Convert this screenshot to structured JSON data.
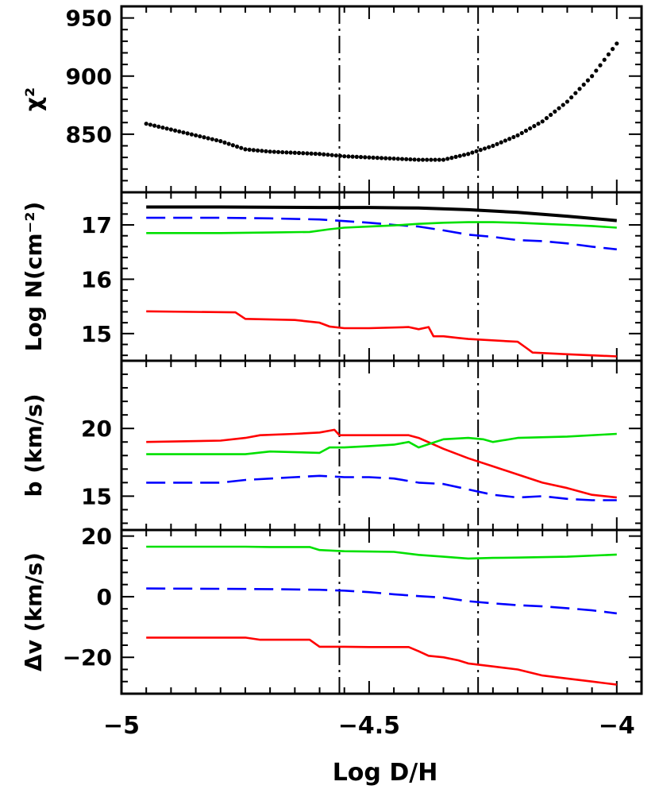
{
  "figure": {
    "xlabel": "Log D/H",
    "x_ticks": [
      -5,
      -4.5,
      -4
    ],
    "x_tick_labels": [
      "−5",
      "−4.5",
      "−4"
    ],
    "xlim": [
      -5,
      -3.95
    ],
    "vlines": [
      -4.56,
      -4.28
    ],
    "colors": {
      "black": "#000000",
      "blue": "#0000ff",
      "green": "#00e000",
      "red": "#ff0000"
    }
  },
  "chart_data": [
    {
      "type": "scatter",
      "ylabel": "χ²",
      "ylim": [
        800,
        960
      ],
      "y_ticks": [
        850,
        900,
        950
      ],
      "y_tick_labels": [
        "850",
        "900",
        "950"
      ],
      "series": [
        {
          "color": "black",
          "style": "dotted",
          "x": [
            -4.95,
            -4.9,
            -4.85,
            -4.8,
            -4.75,
            -4.7,
            -4.65,
            -4.6,
            -4.55,
            -4.5,
            -4.45,
            -4.4,
            -4.35,
            -4.3,
            -4.25,
            -4.2,
            -4.15,
            -4.1,
            -4.05,
            -4.0
          ],
          "y": [
            859,
            854,
            849,
            844,
            837,
            835,
            834,
            833,
            831,
            830,
            829,
            828,
            828,
            833,
            840,
            849,
            861,
            878,
            900,
            928
          ]
        }
      ]
    },
    {
      "type": "line",
      "ylabel": "Log N(cm⁻²)",
      "ylim": [
        14.5,
        17.6
      ],
      "y_ticks": [
        15,
        16,
        17
      ],
      "y_tick_labels": [
        "15",
        "16",
        "17"
      ],
      "series": [
        {
          "color": "black",
          "style": "solid",
          "x": [
            -4.95,
            -4.8,
            -4.6,
            -4.5,
            -4.4,
            -4.3,
            -4.2,
            -4.1,
            -4.0
          ],
          "y": [
            17.33,
            17.33,
            17.32,
            17.32,
            17.31,
            17.28,
            17.23,
            17.16,
            17.08
          ]
        },
        {
          "color": "blue",
          "style": "dashed",
          "x": [
            -4.95,
            -4.8,
            -4.7,
            -4.6,
            -4.55,
            -4.5,
            -4.45,
            -4.4,
            -4.35,
            -4.3,
            -4.25,
            -4.2,
            -4.15,
            -4.1,
            -4.05,
            -4.0
          ],
          "y": [
            17.13,
            17.13,
            17.12,
            17.1,
            17.07,
            17.04,
            17.0,
            16.97,
            16.9,
            16.82,
            16.78,
            16.72,
            16.7,
            16.66,
            16.6,
            16.55
          ]
        },
        {
          "color": "green",
          "style": "solid",
          "x": [
            -4.95,
            -4.8,
            -4.7,
            -4.62,
            -4.58,
            -4.55,
            -4.5,
            -4.45,
            -4.4,
            -4.35,
            -4.3,
            -4.25,
            -4.2,
            -4.15,
            -4.1,
            -4.05,
            -4.0
          ],
          "y": [
            16.85,
            16.85,
            16.86,
            16.87,
            16.92,
            16.95,
            16.97,
            16.99,
            17.02,
            17.04,
            17.05,
            17.05,
            17.04,
            17.02,
            17.0,
            16.98,
            16.95
          ]
        },
        {
          "color": "red",
          "style": "solid",
          "x": [
            -4.95,
            -4.77,
            -4.75,
            -4.65,
            -4.6,
            -4.58,
            -4.55,
            -4.5,
            -4.42,
            -4.4,
            -4.38,
            -4.37,
            -4.35,
            -4.32,
            -4.3,
            -4.2,
            -4.18,
            -4.17,
            -4.1,
            -4.0
          ],
          "y": [
            15.41,
            15.39,
            15.27,
            15.25,
            15.2,
            15.13,
            15.1,
            15.1,
            15.12,
            15.08,
            15.12,
            14.95,
            14.95,
            14.92,
            14.9,
            14.85,
            14.72,
            14.65,
            14.62,
            14.58
          ]
        }
      ]
    },
    {
      "type": "line",
      "ylabel": "b (km/s)",
      "ylim": [
        12.5,
        25
      ],
      "y_ticks": [
        15,
        20
      ],
      "y_tick_labels": [
        "15",
        "20"
      ],
      "series": [
        {
          "color": "red",
          "style": "solid",
          "x": [
            -4.95,
            -4.8,
            -4.75,
            -4.72,
            -4.65,
            -4.6,
            -4.57,
            -4.56,
            -4.5,
            -4.42,
            -4.4,
            -4.35,
            -4.3,
            -4.25,
            -4.2,
            -4.15,
            -4.1,
            -4.05,
            -4.0
          ],
          "y": [
            19.0,
            19.1,
            19.3,
            19.5,
            19.6,
            19.7,
            19.9,
            19.5,
            19.5,
            19.5,
            19.3,
            18.5,
            17.8,
            17.2,
            16.6,
            16.0,
            15.6,
            15.1,
            14.9
          ]
        },
        {
          "color": "green",
          "style": "solid",
          "x": [
            -4.95,
            -4.75,
            -4.7,
            -4.6,
            -4.58,
            -4.55,
            -4.5,
            -4.45,
            -4.42,
            -4.4,
            -4.35,
            -4.3,
            -4.27,
            -4.25,
            -4.2,
            -4.1,
            -4.0
          ],
          "y": [
            18.1,
            18.1,
            18.3,
            18.2,
            18.6,
            18.6,
            18.7,
            18.8,
            19.0,
            18.6,
            19.2,
            19.3,
            19.2,
            19.0,
            19.3,
            19.4,
            19.6
          ]
        },
        {
          "color": "blue",
          "style": "dashed",
          "x": [
            -4.95,
            -4.8,
            -4.75,
            -4.65,
            -4.6,
            -4.55,
            -4.5,
            -4.45,
            -4.4,
            -4.35,
            -4.3,
            -4.25,
            -4.2,
            -4.15,
            -4.1,
            -4.05,
            -4.0
          ],
          "y": [
            16.0,
            16.0,
            16.2,
            16.4,
            16.5,
            16.4,
            16.4,
            16.3,
            16.0,
            15.9,
            15.5,
            15.1,
            14.9,
            15.0,
            14.8,
            14.7,
            14.7
          ]
        }
      ]
    },
    {
      "type": "line",
      "ylabel": "Δv (km/s)",
      "ylim": [
        -32,
        22
      ],
      "y_ticks": [
        -20,
        0,
        20
      ],
      "y_tick_labels": [
        "−20",
        "0",
        "20"
      ],
      "series": [
        {
          "color": "green",
          "style": "solid",
          "x": [
            -4.95,
            -4.75,
            -4.7,
            -4.62,
            -4.6,
            -4.55,
            -4.5,
            -4.45,
            -4.4,
            -4.35,
            -4.3,
            -4.25,
            -4.2,
            -4.1,
            -4.0
          ],
          "y": [
            16.5,
            16.5,
            16.4,
            16.4,
            15.4,
            15.0,
            14.9,
            14.8,
            13.8,
            13.2,
            12.6,
            12.8,
            12.9,
            13.2,
            13.9
          ]
        },
        {
          "color": "blue",
          "style": "dashed",
          "x": [
            -4.95,
            -4.8,
            -4.7,
            -4.6,
            -4.55,
            -4.5,
            -4.45,
            -4.4,
            -4.35,
            -4.3,
            -4.25,
            -4.2,
            -4.15,
            -4.1,
            -4.05,
            -4.0
          ],
          "y": [
            2.7,
            2.6,
            2.5,
            2.3,
            2.0,
            1.5,
            0.8,
            0.2,
            -0.3,
            -1.5,
            -2.2,
            -2.8,
            -3.2,
            -3.8,
            -4.5,
            -5.5
          ]
        },
        {
          "color": "red",
          "style": "solid",
          "x": [
            -4.95,
            -4.75,
            -4.72,
            -4.62,
            -4.6,
            -4.55,
            -4.5,
            -4.42,
            -4.4,
            -4.38,
            -4.35,
            -4.32,
            -4.3,
            -4.25,
            -4.2,
            -4.15,
            -4.1,
            -4.05,
            -4.0
          ],
          "y": [
            -13.5,
            -13.5,
            -14.2,
            -14.2,
            -16.5,
            -16.5,
            -16.6,
            -16.6,
            -18.0,
            -19.5,
            -20.0,
            -21.0,
            -22.0,
            -23.0,
            -24.0,
            -26.0,
            -27.0,
            -28.0,
            -29.0
          ]
        }
      ]
    }
  ]
}
